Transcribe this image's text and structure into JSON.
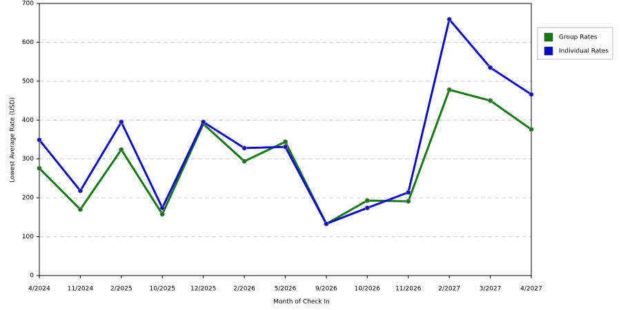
{
  "chart_data": {
    "type": "line",
    "x_label": "Month of Check In",
    "y_label": "Lowest Average Rate (USD)",
    "categories": [
      "4/2024",
      "11/2024",
      "2/2025",
      "10/2025",
      "12/2025",
      "2/2026",
      "5/2026",
      "9/2026",
      "10/2026",
      "11/2026",
      "2/2027",
      "3/2027",
      "4/2027"
    ],
    "series": [
      {
        "name": "Group Rates",
        "color": "#137a13",
        "values": [
          276,
          170,
          324,
          158,
          390,
          294,
          344,
          133,
          193,
          191,
          478,
          450,
          376
        ]
      },
      {
        "name": "Individual Rates",
        "color": "#0b0bd0",
        "values": [
          349,
          218,
          395,
          174,
          395,
          328,
          331,
          133,
          174,
          214,
          659,
          535,
          466
        ]
      }
    ],
    "ylim": [
      0,
      700
    ],
    "yticks": [
      0,
      100,
      200,
      300,
      400,
      500,
      600,
      700
    ],
    "grid": true,
    "legend": "right"
  }
}
